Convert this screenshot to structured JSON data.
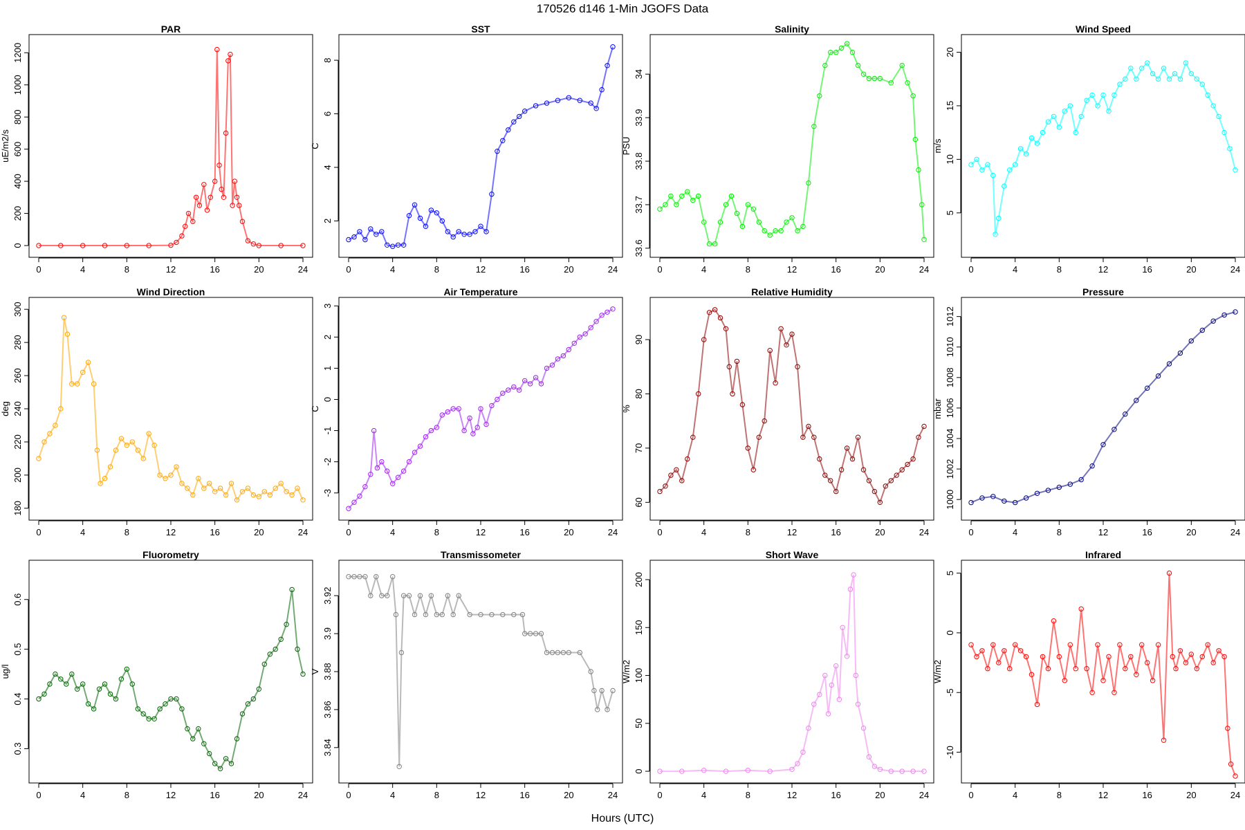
{
  "figure": {
    "title": "170526   d146   1-Min  JGOFS Data",
    "xlabel": "Hours (UTC)"
  },
  "chart_data": [
    {
      "type": "scatter",
      "title": "PAR",
      "ylabel": "uE/m2/s",
      "color": "#ff0000",
      "xlim": [
        0,
        24
      ],
      "xticks": [
        0,
        4,
        8,
        12,
        16,
        20,
        24
      ],
      "ylim": [
        -30,
        1270
      ],
      "yticks": [
        0,
        200,
        400,
        600,
        800,
        1000,
        1200
      ],
      "x": [
        0,
        2,
        4,
        6,
        8,
        10,
        12,
        12.5,
        13,
        13.3,
        13.6,
        14,
        14.3,
        14.6,
        15,
        15.3,
        15.6,
        16,
        16.2,
        16.4,
        16.6,
        16.8,
        17,
        17.2,
        17.4,
        17.6,
        17.8,
        18,
        18.2,
        18.5,
        19,
        19.5,
        20,
        22,
        24
      ],
      "y": [
        0,
        0,
        0,
        0,
        0,
        0,
        2,
        20,
        60,
        120,
        200,
        150,
        300,
        250,
        380,
        220,
        300,
        400,
        1220,
        500,
        350,
        300,
        700,
        1150,
        1190,
        250,
        400,
        300,
        250,
        150,
        30,
        10,
        0,
        0,
        0
      ]
    },
    {
      "type": "scatter",
      "title": "SST",
      "ylabel": "C",
      "color": "#0000ff",
      "xlim": [
        0,
        24
      ],
      "xticks": [
        0,
        4,
        8,
        12,
        16,
        20,
        24
      ],
      "ylim": [
        0.9,
        8.7
      ],
      "yticks": [
        2,
        4,
        6,
        8
      ],
      "x": [
        0,
        0.5,
        1,
        1.5,
        2,
        2.5,
        3,
        3.5,
        4,
        4.5,
        5,
        5.5,
        6,
        6.5,
        7,
        7.5,
        8,
        8.5,
        9,
        9.5,
        10,
        10.5,
        11,
        11.5,
        12,
        12.5,
        13,
        13.5,
        14,
        14.5,
        15,
        15.5,
        16,
        17,
        18,
        19,
        20,
        21,
        22,
        22.5,
        23,
        23.5,
        24
      ],
      "y": [
        1.3,
        1.4,
        1.6,
        1.3,
        1.7,
        1.5,
        1.6,
        1.1,
        1.05,
        1.1,
        1.1,
        2.2,
        2.6,
        2.1,
        1.8,
        2.4,
        2.3,
        2.0,
        1.6,
        1.4,
        1.6,
        1.5,
        1.5,
        1.6,
        1.8,
        1.6,
        3.0,
        4.6,
        5.0,
        5.4,
        5.7,
        5.9,
        6.1,
        6.3,
        6.4,
        6.5,
        6.6,
        6.5,
        6.4,
        6.2,
        6.9,
        7.8,
        8.5
      ]
    },
    {
      "type": "scatter",
      "title": "Salinity",
      "ylabel": "PSU",
      "color": "#00ee00",
      "xlim": [
        0,
        24
      ],
      "xticks": [
        0,
        4,
        8,
        12,
        16,
        20,
        24
      ],
      "ylim": [
        33.595,
        34.075
      ],
      "yticks": [
        33.6,
        33.7,
        33.8,
        33.9,
        34.0
      ],
      "x": [
        0,
        0.5,
        1,
        1.5,
        2,
        2.5,
        3,
        3.5,
        4,
        4.5,
        5,
        5.5,
        6,
        6.5,
        7,
        7.5,
        8,
        8.5,
        9,
        9.5,
        10,
        10.5,
        11,
        11.5,
        12,
        12.5,
        13,
        13.5,
        14,
        14.5,
        15,
        15.5,
        16,
        16.5,
        17,
        17.5,
        18,
        18.5,
        19,
        19.5,
        20,
        21,
        22,
        22.5,
        23,
        23.2,
        23.5,
        23.8,
        24
      ],
      "y": [
        33.69,
        33.7,
        33.72,
        33.7,
        33.72,
        33.73,
        33.71,
        33.72,
        33.66,
        33.61,
        33.61,
        33.66,
        33.7,
        33.72,
        33.68,
        33.65,
        33.7,
        33.69,
        33.66,
        33.64,
        33.63,
        33.64,
        33.64,
        33.66,
        33.67,
        33.64,
        33.65,
        33.75,
        33.88,
        33.95,
        34.02,
        34.05,
        34.05,
        34.06,
        34.07,
        34.05,
        34.02,
        34.0,
        33.99,
        33.99,
        33.99,
        33.98,
        34.02,
        33.98,
        33.95,
        33.85,
        33.78,
        33.7,
        33.62
      ]
    },
    {
      "type": "scatter",
      "title": "Wind Speed",
      "ylabel": "m/s",
      "color": "#00ffff",
      "xlim": [
        0,
        24
      ],
      "xticks": [
        0,
        4,
        8,
        12,
        16,
        20,
        24
      ],
      "ylim": [
        1.5,
        21
      ],
      "yticks": [
        5,
        10,
        15,
        20
      ],
      "x": [
        0,
        0.5,
        1,
        1.5,
        2,
        2.2,
        2.5,
        3,
        3.5,
        4,
        4.5,
        5,
        5.5,
        6,
        6.5,
        7,
        7.5,
        8,
        8.5,
        9,
        9.5,
        10,
        10.5,
        11,
        11.5,
        12,
        12.5,
        13,
        13.5,
        14,
        14.5,
        15,
        15.5,
        16,
        16.5,
        17,
        17.5,
        18,
        18.5,
        19,
        19.5,
        20,
        20.5,
        21,
        21.5,
        22,
        22.5,
        23,
        23.5,
        24
      ],
      "y": [
        9.5,
        10,
        9,
        9.5,
        8.5,
        3,
        4.5,
        7.5,
        9,
        9.5,
        11,
        10.5,
        12,
        11.5,
        12.5,
        13.5,
        14,
        13,
        14.5,
        15,
        12.5,
        14,
        15.5,
        16,
        15,
        16,
        14.5,
        16,
        17,
        17.5,
        18.5,
        17.5,
        18.5,
        19,
        18,
        17.5,
        18.5,
        17.5,
        18,
        17.5,
        19,
        18,
        17.5,
        17,
        16,
        15,
        14,
        12.5,
        11,
        9
      ]
    },
    {
      "type": "scatter",
      "title": "Wind Direction",
      "ylabel": "deg",
      "color": "#ffa500",
      "xlim": [
        0,
        24
      ],
      "xticks": [
        0,
        4,
        8,
        12,
        16,
        20,
        24
      ],
      "ylim": [
        177,
        303
      ],
      "yticks": [
        180,
        200,
        220,
        240,
        260,
        280,
        300
      ],
      "x": [
        0,
        0.5,
        1,
        1.5,
        2,
        2.3,
        2.6,
        3,
        3.5,
        4,
        4.5,
        5,
        5.3,
        5.6,
        6,
        6.5,
        7,
        7.5,
        8,
        8.5,
        9,
        9.5,
        10,
        10.5,
        11,
        11.5,
        12,
        12.5,
        13,
        13.5,
        14,
        14.5,
        15,
        15.5,
        16,
        16.5,
        17,
        17.5,
        18,
        18.5,
        19,
        19.5,
        20,
        20.5,
        21,
        21.5,
        22,
        22.5,
        23,
        23.5,
        24
      ],
      "y": [
        210,
        220,
        225,
        230,
        240,
        295,
        285,
        255,
        255,
        262,
        268,
        255,
        215,
        195,
        198,
        205,
        215,
        222,
        218,
        220,
        215,
        210,
        225,
        218,
        200,
        198,
        200,
        205,
        195,
        192,
        188,
        198,
        192,
        195,
        190,
        192,
        188,
        195,
        185,
        190,
        192,
        188,
        187,
        190,
        188,
        192,
        195,
        190,
        188,
        192,
        185
      ]
    },
    {
      "type": "scatter",
      "title": "Air Temperature",
      "ylabel": "C",
      "color": "#a020f0",
      "xlim": [
        0,
        24
      ],
      "xticks": [
        0,
        4,
        8,
        12,
        16,
        20,
        24
      ],
      "ylim": [
        -3.65,
        3.05
      ],
      "yticks": [
        -3,
        -2,
        -1,
        0,
        1,
        2,
        3
      ],
      "x": [
        0,
        0.5,
        1,
        1.5,
        2,
        2.3,
        2.6,
        3,
        3.5,
        4,
        4.5,
        5,
        5.5,
        6,
        6.5,
        7,
        7.5,
        8,
        8.5,
        9,
        9.5,
        10,
        10.5,
        11,
        11.3,
        11.7,
        12,
        12.5,
        13,
        13.5,
        14,
        14.5,
        15,
        15.5,
        16,
        16.5,
        17,
        17.5,
        18,
        18.5,
        19,
        19.5,
        20,
        20.5,
        21,
        21.5,
        22,
        22.5,
        23,
        23.5,
        24
      ],
      "y": [
        -3.5,
        -3.3,
        -3.1,
        -2.8,
        -2.4,
        -1.0,
        -2.2,
        -2.0,
        -2.3,
        -2.7,
        -2.5,
        -2.3,
        -2.0,
        -1.7,
        -1.5,
        -1.2,
        -1.0,
        -0.9,
        -0.5,
        -0.4,
        -0.3,
        -0.3,
        -1.0,
        -0.6,
        -1.1,
        -0.9,
        -0.3,
        -0.8,
        -0.2,
        0.0,
        0.2,
        0.3,
        0.4,
        0.3,
        0.6,
        0.5,
        0.7,
        0.5,
        1.0,
        1.1,
        1.3,
        1.4,
        1.6,
        1.8,
        2.0,
        2.1,
        2.3,
        2.5,
        2.7,
        2.8,
        2.9
      ]
    },
    {
      "type": "scatter",
      "title": "Relative Humidity",
      "ylabel": "%",
      "color": "#8b0000",
      "xlim": [
        0,
        24
      ],
      "xticks": [
        0,
        4,
        8,
        12,
        16,
        20,
        24
      ],
      "ylim": [
        58,
        96.5
      ],
      "yticks": [
        60,
        70,
        80,
        90
      ],
      "x": [
        0,
        0.5,
        1,
        1.5,
        2,
        2.5,
        3,
        3.5,
        4,
        4.5,
        5,
        5.5,
        6,
        6.3,
        6.6,
        7,
        7.5,
        8,
        8.5,
        9,
        9.5,
        10,
        10.5,
        11,
        11.5,
        12,
        12.5,
        13,
        13.5,
        14,
        14.5,
        15,
        15.5,
        16,
        16.5,
        17,
        17.5,
        18,
        18.5,
        19,
        19.5,
        20,
        20.5,
        21,
        21.5,
        22,
        22.5,
        23,
        23.5,
        24
      ],
      "y": [
        62,
        63,
        65,
        66,
        64,
        68,
        72,
        80,
        90,
        95,
        95.5,
        94,
        92,
        85,
        80,
        86,
        78,
        70,
        66,
        72,
        75,
        88,
        82,
        92,
        89,
        91,
        85,
        72,
        74,
        72,
        68,
        65,
        64,
        62,
        66,
        70,
        68,
        72,
        66,
        64,
        62,
        60,
        63,
        64,
        65,
        66,
        67,
        68,
        72,
        74
      ]
    },
    {
      "type": "scatter",
      "title": "Pressure",
      "ylabel": "mbar",
      "color": "#000080",
      "xlim": [
        0,
        24
      ],
      "xticks": [
        0,
        4,
        8,
        12,
        16,
        20,
        24
      ],
      "ylim": [
        999.1,
        1012.8
      ],
      "yticks": [
        1000,
        1002,
        1004,
        1006,
        1008,
        1010,
        1012
      ],
      "x": [
        0,
        1,
        2,
        3,
        4,
        5,
        6,
        7,
        8,
        9,
        10,
        11,
        12,
        13,
        14,
        15,
        16,
        17,
        18,
        19,
        20,
        21,
        22,
        23,
        24
      ],
      "y": [
        999.8,
        1000.1,
        1000.2,
        999.9,
        999.8,
        1000.1,
        1000.4,
        1000.6,
        1000.8,
        1001.0,
        1001.3,
        1002.2,
        1003.6,
        1004.6,
        1005.6,
        1006.5,
        1007.3,
        1008.1,
        1008.9,
        1009.6,
        1010.4,
        1011.1,
        1011.7,
        1012.1,
        1012.3
      ]
    },
    {
      "type": "scatter",
      "title": "Fluorometry",
      "ylabel": "ug/l",
      "color": "#006400",
      "xlim": [
        0,
        24
      ],
      "xticks": [
        0,
        4,
        8,
        12,
        16,
        20,
        24
      ],
      "ylim": [
        0.245,
        0.665
      ],
      "yticks": [
        0.3,
        0.4,
        0.5,
        0.6
      ],
      "x": [
        0,
        0.5,
        1,
        1.5,
        2,
        2.5,
        3,
        3.5,
        4,
        4.5,
        5,
        5.5,
        6,
        6.5,
        7,
        7.5,
        8,
        8.5,
        9,
        9.5,
        10,
        10.5,
        11,
        11.5,
        12,
        12.5,
        13,
        13.5,
        14,
        14.5,
        15,
        15.5,
        16,
        16.5,
        17,
        17.5,
        18,
        18.5,
        19,
        19.5,
        20,
        20.5,
        21,
        21.5,
        22,
        22.5,
        23,
        23.5,
        24
      ],
      "y": [
        0.4,
        0.41,
        0.43,
        0.45,
        0.44,
        0.43,
        0.45,
        0.42,
        0.43,
        0.39,
        0.38,
        0.42,
        0.43,
        0.41,
        0.4,
        0.44,
        0.46,
        0.43,
        0.38,
        0.37,
        0.36,
        0.36,
        0.38,
        0.39,
        0.4,
        0.4,
        0.38,
        0.34,
        0.32,
        0.34,
        0.31,
        0.29,
        0.27,
        0.26,
        0.28,
        0.27,
        0.32,
        0.37,
        0.39,
        0.4,
        0.42,
        0.47,
        0.49,
        0.5,
        0.52,
        0.55,
        0.62,
        0.5,
        0.45
      ]
    },
    {
      "type": "scatter",
      "title": "Transmissometer",
      "ylabel": "V",
      "color": "#808080",
      "xlim": [
        0,
        24
      ],
      "xticks": [
        0,
        4,
        8,
        12,
        16,
        20,
        24
      ],
      "ylim": [
        3.825,
        3.935
      ],
      "yticks": [
        3.84,
        3.86,
        3.88,
        3.9,
        3.92
      ],
      "x": [
        0,
        0.5,
        1,
        1.5,
        2,
        2.5,
        3,
        3.5,
        4,
        4.3,
        4.6,
        4.8,
        5,
        5.5,
        6,
        6.5,
        7,
        7.5,
        8,
        8.5,
        9,
        9.5,
        10,
        11,
        12,
        13,
        14,
        15,
        15.8,
        16,
        16.5,
        17,
        17.5,
        18,
        18.5,
        19,
        19.5,
        20,
        21,
        22,
        22.3,
        22.6,
        23,
        23.5,
        24
      ],
      "y": [
        3.93,
        3.93,
        3.93,
        3.93,
        3.92,
        3.93,
        3.92,
        3.92,
        3.93,
        3.91,
        3.83,
        3.89,
        3.92,
        3.92,
        3.91,
        3.92,
        3.91,
        3.92,
        3.91,
        3.91,
        3.92,
        3.91,
        3.92,
        3.91,
        3.91,
        3.91,
        3.91,
        3.91,
        3.91,
        3.9,
        3.9,
        3.9,
        3.9,
        3.89,
        3.89,
        3.89,
        3.89,
        3.89,
        3.89,
        3.88,
        3.87,
        3.86,
        3.87,
        3.86,
        3.87
      ]
    },
    {
      "type": "scatter",
      "title": "Short Wave",
      "ylabel": "W/m2",
      "color": "#ee82ee",
      "xlim": [
        0,
        24
      ],
      "xticks": [
        0,
        4,
        8,
        12,
        16,
        20,
        24
      ],
      "ylim": [
        -5,
        213
      ],
      "yticks": [
        0,
        50,
        100,
        150,
        200
      ],
      "x": [
        0,
        2,
        4,
        6,
        8,
        10,
        12,
        12.5,
        13,
        13.5,
        14,
        14.5,
        15,
        15.3,
        15.6,
        16,
        16.3,
        16.6,
        17,
        17.3,
        17.6,
        17.8,
        18,
        18.5,
        19,
        19.5,
        20,
        21,
        22,
        23,
        24
      ],
      "y": [
        0,
        0,
        1,
        0,
        1,
        0,
        2,
        8,
        20,
        45,
        70,
        80,
        100,
        60,
        90,
        110,
        75,
        150,
        120,
        190,
        205,
        100,
        70,
        45,
        15,
        5,
        2,
        0,
        0,
        0,
        0
      ]
    },
    {
      "type": "scatter",
      "title": "Infrared",
      "ylabel": "W/m2",
      "color": "#ff0000",
      "xlim": [
        0,
        24
      ],
      "xticks": [
        0,
        4,
        8,
        12,
        16,
        20,
        24
      ],
      "ylim": [
        -12,
        5.5
      ],
      "yticks": [
        -10,
        -5,
        0,
        5
      ],
      "x": [
        0,
        0.5,
        1,
        1.5,
        2,
        2.5,
        3,
        3.5,
        4,
        4.5,
        5,
        5.5,
        6,
        6.5,
        7,
        7.5,
        8,
        8.5,
        9,
        9.5,
        10,
        10.5,
        11,
        11.5,
        12,
        12.5,
        13,
        13.5,
        14,
        14.5,
        15,
        15.5,
        16,
        16.5,
        17,
        17.5,
        18,
        18.3,
        18.6,
        19,
        19.5,
        20,
        20.5,
        21,
        21.5,
        22,
        22.5,
        23,
        23.3,
        23.6,
        24
      ],
      "y": [
        -1,
        -2,
        -1.5,
        -3,
        -1,
        -2.5,
        -1.5,
        -3,
        -1,
        -1.5,
        -2,
        -3.5,
        -6,
        -2,
        -3,
        1,
        -2,
        -4,
        -1,
        -3,
        2,
        -3,
        -5,
        -1,
        -4,
        -2,
        -5,
        -1,
        -3,
        -2,
        -3.5,
        -1,
        -2.5,
        -4,
        -1,
        -9,
        5,
        -2,
        -3,
        -1.5,
        -2.5,
        -1.8,
        -3,
        -2,
        -1,
        -2.5,
        -1.5,
        -2,
        -8,
        -11,
        -12
      ]
    }
  ]
}
